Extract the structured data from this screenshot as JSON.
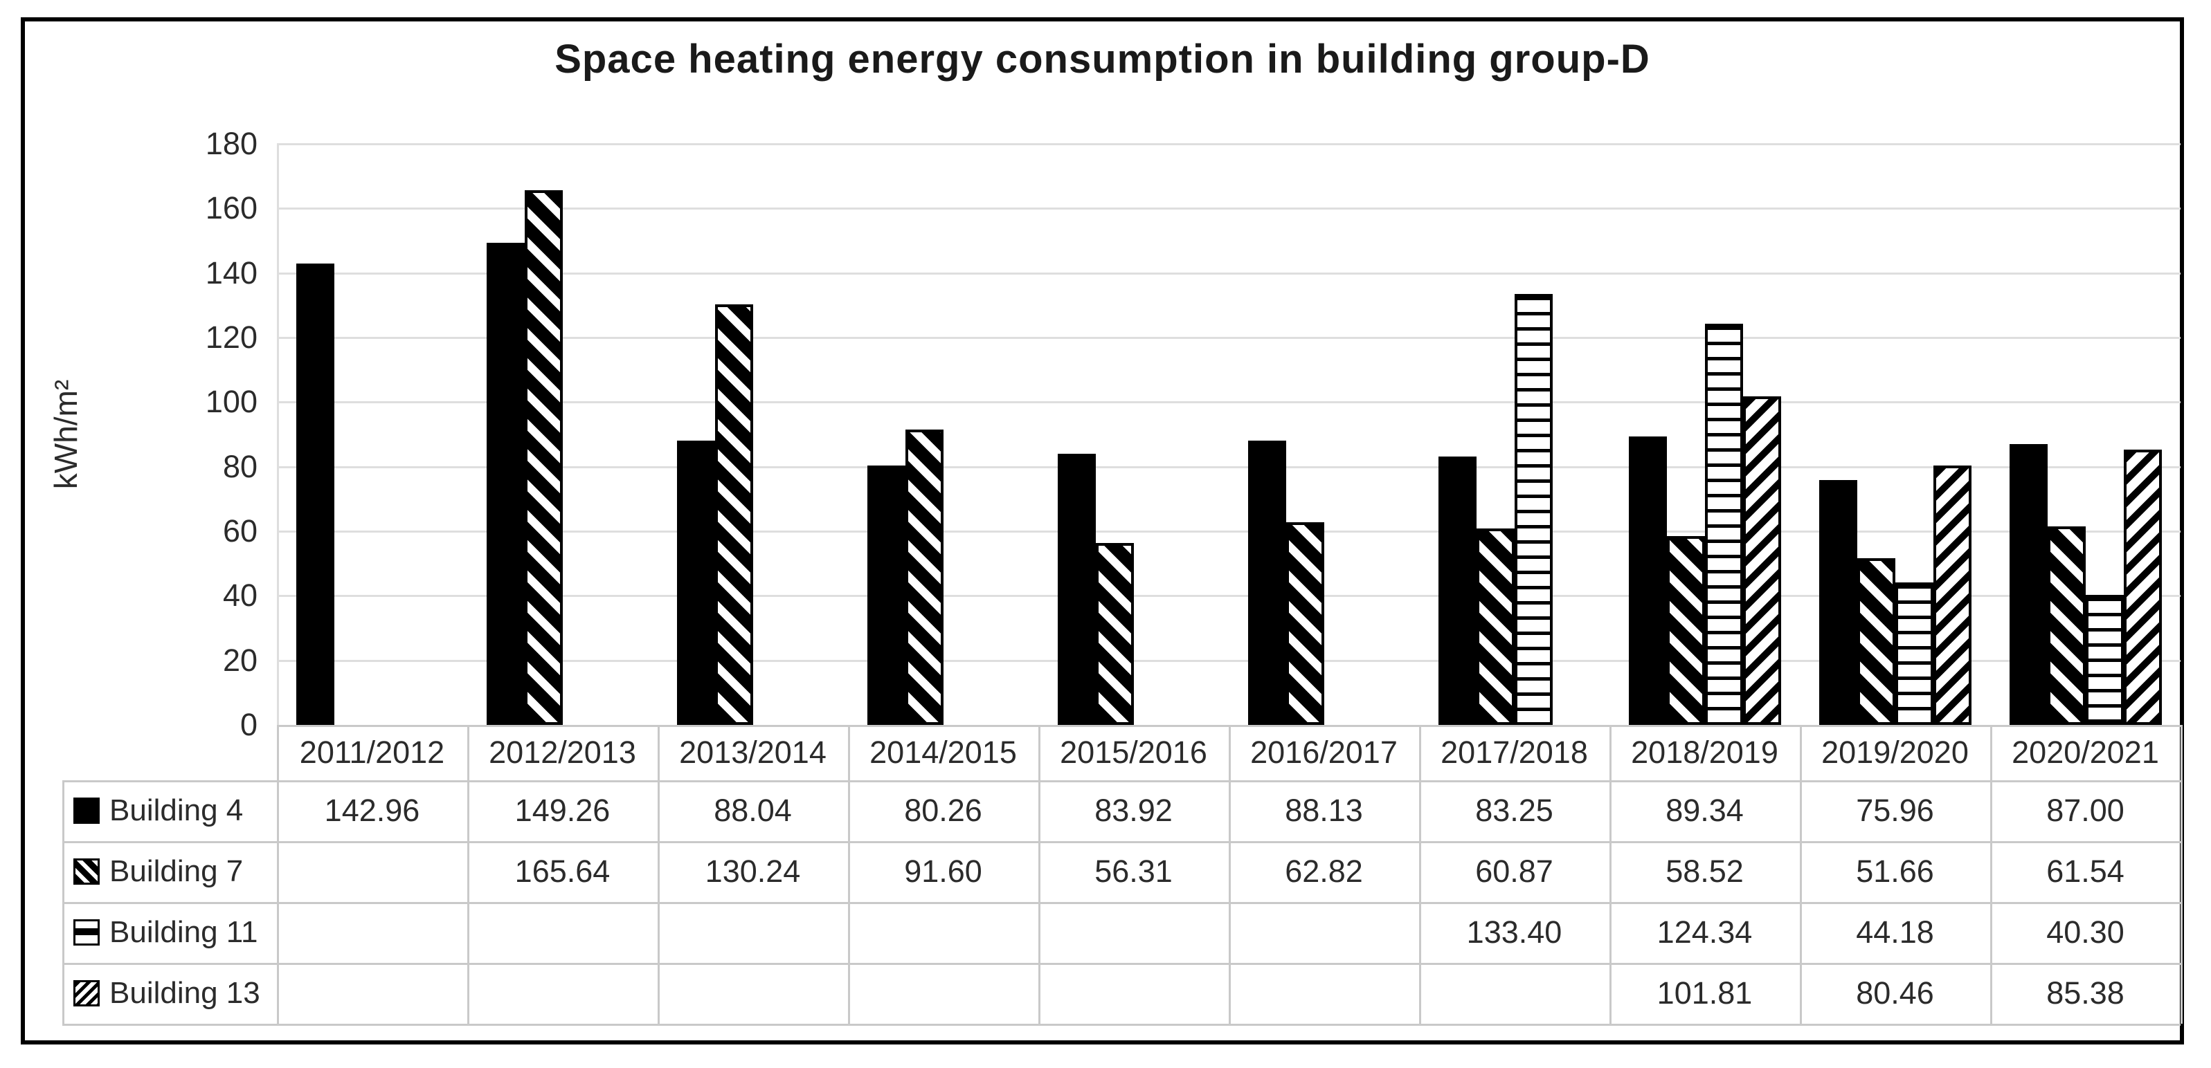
{
  "chart_data": {
    "type": "bar",
    "title": "Space heating energy consumption in building group-D",
    "ylabel": "kWh/m²",
    "ylim": [
      0,
      180
    ],
    "ytick_step": 20,
    "grid": true,
    "legend_position": "data-table-left-column",
    "categories": [
      "2011/2012",
      "2012/2013",
      "2013/2014",
      "2014/2015",
      "2015/2016",
      "2016/2017",
      "2017/2018",
      "2018/2019",
      "2019/2020",
      "2020/2021"
    ],
    "series": [
      {
        "name": "Building 4",
        "pattern": "solid-black",
        "values": [
          142.96,
          149.26,
          88.04,
          80.26,
          83.92,
          88.13,
          83.25,
          89.34,
          75.96,
          87.0
        ],
        "display": [
          "142.96",
          "149.26",
          "88.04",
          "80.26",
          "83.92",
          "88.13",
          "83.25",
          "89.34",
          "75.96",
          "87.00"
        ]
      },
      {
        "name": "Building 7",
        "pattern": "diagonal-backslash-hatch",
        "values": [
          null,
          165.64,
          130.24,
          91.6,
          56.31,
          62.82,
          60.87,
          58.52,
          51.66,
          61.54
        ],
        "display": [
          "",
          "165.64",
          "130.24",
          "91.60",
          "56.31",
          "62.82",
          "60.87",
          "58.52",
          "51.66",
          "61.54"
        ]
      },
      {
        "name": "Building 11",
        "pattern": "horizontal-lines",
        "values": [
          null,
          null,
          null,
          null,
          null,
          null,
          133.4,
          124.34,
          44.18,
          40.3
        ],
        "display": [
          "",
          "",
          "",
          "",
          "",
          "",
          "133.40",
          "124.34",
          "44.18",
          "40.30"
        ]
      },
      {
        "name": "Building 13",
        "pattern": "diagonal-slash-hatch",
        "values": [
          null,
          null,
          null,
          null,
          null,
          null,
          null,
          101.81,
          80.46,
          85.38
        ],
        "display": [
          "",
          "",
          "",
          "",
          "",
          "",
          "",
          "101.81",
          "80.46",
          "85.38"
        ]
      }
    ]
  },
  "colors": {
    "bar_fill": "#000000",
    "gridline": "#dedede",
    "table_border": "#c9c9c9",
    "text": "#2b2b2b",
    "frame_border": "#000000",
    "background": "#ffffff"
  }
}
